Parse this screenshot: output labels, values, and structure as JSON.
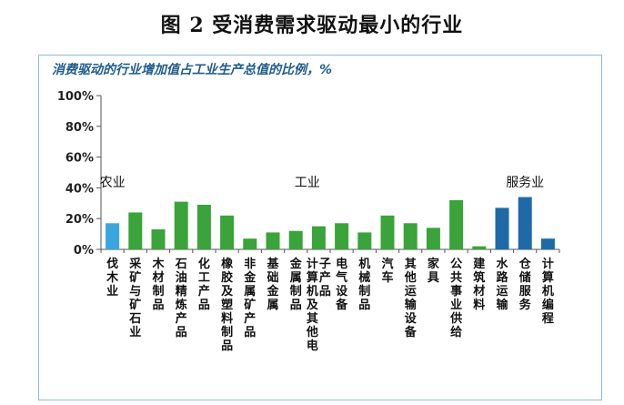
{
  "title": "图 2 受消费需求驱动最小的行业",
  "chart_data": {
    "type": "bar",
    "subtitle": "消费驱动的行业增加值占工业生产总值的比例，%",
    "y_ticks": [
      "0%",
      "20%",
      "40%",
      "60%",
      "80%",
      "100%"
    ],
    "ylim": [
      0,
      100
    ],
    "grid": false,
    "groups": [
      {
        "label": "农业",
        "start": 0,
        "end": 0
      },
      {
        "label": "工业",
        "start": 1,
        "end": 16
      },
      {
        "label": "服务业",
        "start": 17,
        "end": 19
      }
    ],
    "colors": {
      "agri": "#3aa6df",
      "industry": "#3aa33a",
      "service": "#1e6aa8",
      "axis": "#555555"
    },
    "categories": [
      "伐木业",
      "采矿与矿石业",
      "木材制品",
      "石油精炼产品",
      "化工产品",
      "橡胶及塑料制品",
      "非金属矿产品",
      "基础金属",
      "金属制品",
      "计算机及其他电子产品",
      "电气设备",
      "机械制品",
      "汽车",
      "其他运输设备",
      "家具",
      "公共事业供给",
      "建筑材料",
      "水路运输",
      "仓储服务",
      "计算机编程"
    ],
    "values": [
      17,
      24,
      13,
      31,
      29,
      22,
      7,
      11,
      12,
      15,
      17,
      11,
      22,
      17,
      14,
      32,
      2,
      27,
      34,
      7
    ],
    "sectors": [
      "agri",
      "industry",
      "industry",
      "industry",
      "industry",
      "industry",
      "industry",
      "industry",
      "industry",
      "industry",
      "industry",
      "industry",
      "industry",
      "industry",
      "industry",
      "industry",
      "industry",
      "service",
      "service",
      "service"
    ]
  }
}
